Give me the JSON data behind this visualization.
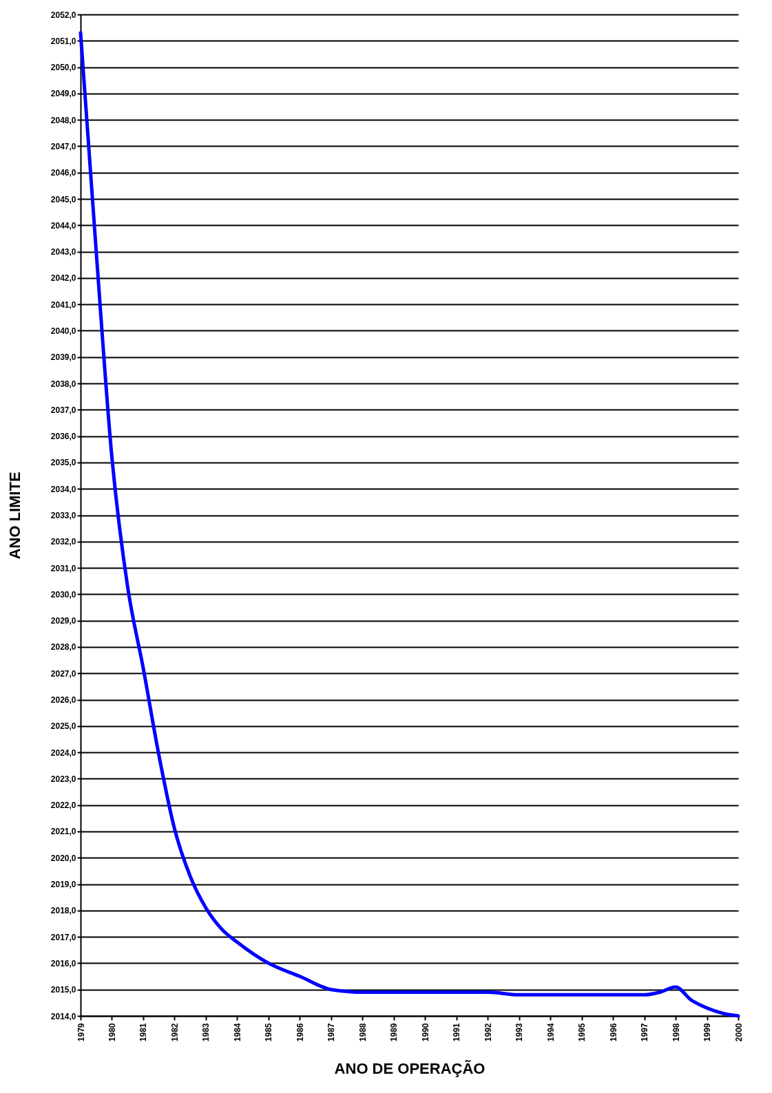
{
  "chart_data": {
    "type": "line",
    "xlabel": "ANO DE OPERAÇÃO",
    "ylabel": "ANO LIMITE",
    "x": [
      1979,
      1979.5,
      1980,
      1980.5,
      1981,
      1981.5,
      1982,
      1982.5,
      1983,
      1983.5,
      1984,
      1985,
      1986,
      1987,
      1988,
      1989,
      1990,
      1991,
      1992,
      1993,
      1994,
      1995,
      1996,
      1997,
      1997.5,
      1998,
      1998.5,
      1999,
      1999.5,
      2000
    ],
    "series": [
      {
        "color": "#0000ff",
        "values": [
          2051.3,
          2043.0,
          2035.2,
          2030.3,
          2027.2,
          2023.9,
          2021.1,
          2019.3,
          2018.1,
          2017.3,
          2016.8,
          2016.0,
          2015.5,
          2015.0,
          2014.9,
          2014.9,
          2014.9,
          2014.9,
          2014.9,
          2014.8,
          2014.8,
          2014.8,
          2014.8,
          2014.8,
          2014.9,
          2015.1,
          2014.6,
          2014.3,
          2014.1,
          2014.0
        ]
      }
    ],
    "xlim": [
      1979,
      2000
    ],
    "xticks": [
      1979,
      1980,
      1981,
      1982,
      1983,
      1984,
      1985,
      1986,
      1987,
      1988,
      1989,
      1990,
      1991,
      1992,
      1993,
      1994,
      1995,
      1996,
      1997,
      1998,
      1999,
      2000
    ],
    "ylim": [
      2014,
      2052
    ],
    "yticks": [
      {
        "value": 2014,
        "label": "2014,0"
      },
      {
        "value": 2015,
        "label": "2015,0"
      },
      {
        "value": 2016,
        "label": "2016,0"
      },
      {
        "value": 2017,
        "label": "2017,0"
      },
      {
        "value": 2018,
        "label": "2018,0"
      },
      {
        "value": 2019,
        "label": "2019,0"
      },
      {
        "value": 2020,
        "label": "2020,0"
      },
      {
        "value": 2021,
        "label": "2021,0"
      },
      {
        "value": 2022,
        "label": "2022,0"
      },
      {
        "value": 2023,
        "label": "2023,0"
      },
      {
        "value": 2024,
        "label": "2024,0"
      },
      {
        "value": 2025,
        "label": "2025,0"
      },
      {
        "value": 2026,
        "label": "2026,0"
      },
      {
        "value": 2027,
        "label": "2027,0"
      },
      {
        "value": 2028,
        "label": "2028,0"
      },
      {
        "value": 2029,
        "label": "2029,0"
      },
      {
        "value": 2030,
        "label": "2030,0"
      },
      {
        "value": 2031,
        "label": "2031,0"
      },
      {
        "value": 2032,
        "label": "2032,0"
      },
      {
        "value": 2033,
        "label": "2033,0"
      },
      {
        "value": 2034,
        "label": "2034,0"
      },
      {
        "value": 2035,
        "label": "2035,0"
      },
      {
        "value": 2036,
        "label": "2036,0"
      },
      {
        "value": 2037,
        "label": "2037,0"
      },
      {
        "value": 2038,
        "label": "2038,0"
      },
      {
        "value": 2039,
        "label": "2039,0"
      },
      {
        "value": 2040,
        "label": "2040,0"
      },
      {
        "value": 2041,
        "label": "2041,0"
      },
      {
        "value": 2042,
        "label": "2042,0"
      },
      {
        "value": 2043,
        "label": "2043,0"
      },
      {
        "value": 2044,
        "label": "2044,0"
      },
      {
        "value": 2045,
        "label": "2045,0"
      },
      {
        "value": 2046,
        "label": "2046,0"
      },
      {
        "value": 2047,
        "label": "2047,0"
      },
      {
        "value": 2048,
        "label": "2048,0"
      },
      {
        "value": 2049,
        "label": "2049,0"
      },
      {
        "value": 2050,
        "label": "2050,0"
      },
      {
        "value": 2051,
        "label": "2051,0"
      },
      {
        "value": 2052,
        "label": "2052,0"
      }
    ],
    "grid": "y",
    "marker": "none",
    "line_style": "solid"
  }
}
